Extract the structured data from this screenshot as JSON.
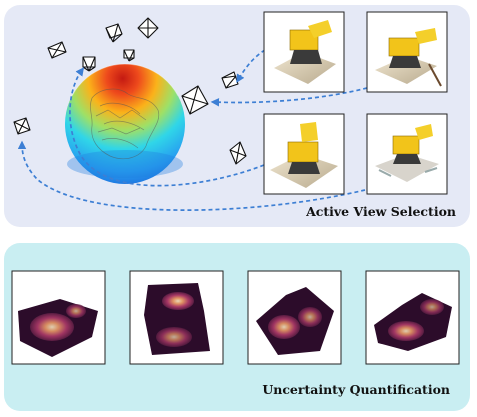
{
  "active_view_selection": {
    "caption": "Active View Selection"
  },
  "uncertainty_quantification": {
    "caption": "Uncertainty Quantification"
  }
}
